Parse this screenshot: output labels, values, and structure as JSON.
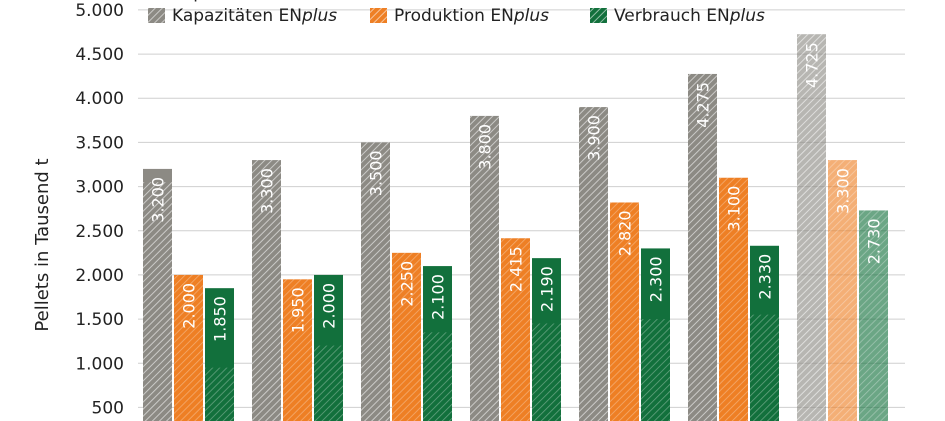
{
  "chart_data": {
    "type": "bar",
    "ylabel": "Pellets in Tausend t",
    "ylim": [
      0,
      5000
    ],
    "yticks": [
      {
        "value": 500,
        "label": "500"
      },
      {
        "value": 1000,
        "label": "1.000"
      },
      {
        "value": 1500,
        "label": "1.500"
      },
      {
        "value": 2000,
        "label": "2.000"
      },
      {
        "value": 2500,
        "label": "2.500"
      },
      {
        "value": 3000,
        "label": "3.000"
      },
      {
        "value": 3500,
        "label": "3.500"
      },
      {
        "value": 4000,
        "label": "4.000"
      },
      {
        "value": 4500,
        "label": "4.500"
      },
      {
        "value": 5000,
        "label": "5.000"
      }
    ],
    "grid": true,
    "legend": {
      "placement": "top",
      "entries": [
        {
          "name": "Kapazitäten",
          "color": "#8c8a84"
        },
        {
          "name": "Produktion",
          "color": "#ee7f24"
        },
        {
          "name": "Verbrauch",
          "color": "#12703c"
        },
        {
          "name_main": "Kapazitäten EN",
          "name_italic": "plus",
          "color": "#8c8a84"
        },
        {
          "name_main": "Produktion EN",
          "name_italic": "plus",
          "color": "#ee7f24"
        },
        {
          "name_main": "Verbrauch EN",
          "name_italic": "plus",
          "color": "#12703c"
        }
      ]
    },
    "series": [
      {
        "name": "Kapazitäten",
        "color": "#8c8a84",
        "values": [
          3200,
          3300,
          3500,
          3800,
          3900,
          4275,
          4725
        ],
        "labels": [
          "3.200",
          "3.300",
          "3.500",
          "3.800",
          "3.900",
          "4.275",
          "4.725"
        ]
      },
      {
        "name": "Produktion",
        "color": "#ee7f24",
        "values": [
          2000,
          1950,
          2250,
          2415,
          2820,
          3100,
          3300
        ],
        "labels": [
          "2.000",
          "1.950",
          "2.250",
          "2.415",
          "2.820",
          "3.100",
          "3.300"
        ]
      },
      {
        "name": "Verbrauch",
        "color": "#12703c",
        "values": [
          1850,
          2000,
          2100,
          2190,
          2300,
          2330,
          2730
        ],
        "labels": [
          "1.850",
          "2.000",
          "2.100",
          "2.190",
          "2.300",
          "2.330",
          "2.730"
        ]
      }
    ],
    "enplus_share": {
      "Kapazitäten": [
        3050,
        3300,
        3500,
        3800,
        3900,
        4275,
        4725
      ],
      "Verbrauch": [
        950,
        1200,
        1350,
        1450,
        1500,
        1550,
        2730
      ]
    },
    "last_group_forecast": true
  }
}
